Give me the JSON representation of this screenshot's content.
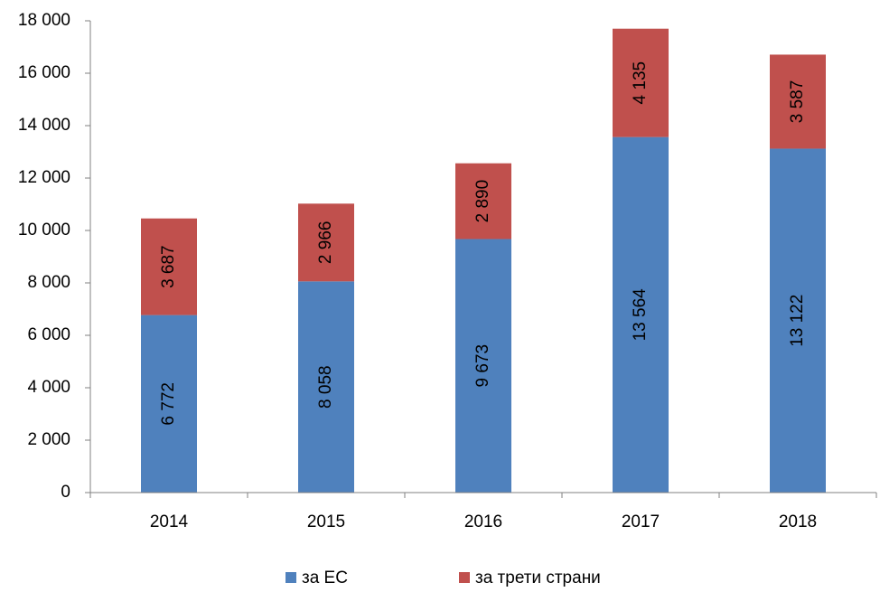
{
  "chart_data": {
    "type": "bar",
    "stacked": true,
    "categories": [
      "2014",
      "2015",
      "2016",
      "2017",
      "2018"
    ],
    "series": [
      {
        "name": "за ЕС",
        "color": "#4f81bd",
        "values": [
          6772,
          8058,
          9673,
          13564,
          13122
        ],
        "value_labels": [
          "6 772",
          "8 058",
          "9 673",
          "13 564",
          "13 122"
        ]
      },
      {
        "name": "за трети страни",
        "color": "#c0504d",
        "values": [
          3687,
          2966,
          2890,
          4135,
          3587
        ],
        "value_labels": [
          "3 687",
          "2 966",
          "2 890",
          "4 135",
          "3 587"
        ]
      }
    ],
    "ylim": [
      0,
      18000
    ],
    "yticks": [
      0,
      {
        "value": 2000,
        "label": "2 000"
      },
      {
        "value": 4000,
        "label": "4 000"
      },
      {
        "value": 6000,
        "label": "6 000"
      },
      {
        "value": 8000,
        "label": "8 000"
      },
      {
        "value": 10000,
        "label": "10 000"
      },
      {
        "value": 12000,
        "label": "12 000"
      },
      {
        "value": 14000,
        "label": "14 000"
      },
      {
        "value": 16000,
        "label": "16 000"
      },
      {
        "value": 18000,
        "label": "18 000"
      }
    ],
    "legend": "bottom"
  }
}
